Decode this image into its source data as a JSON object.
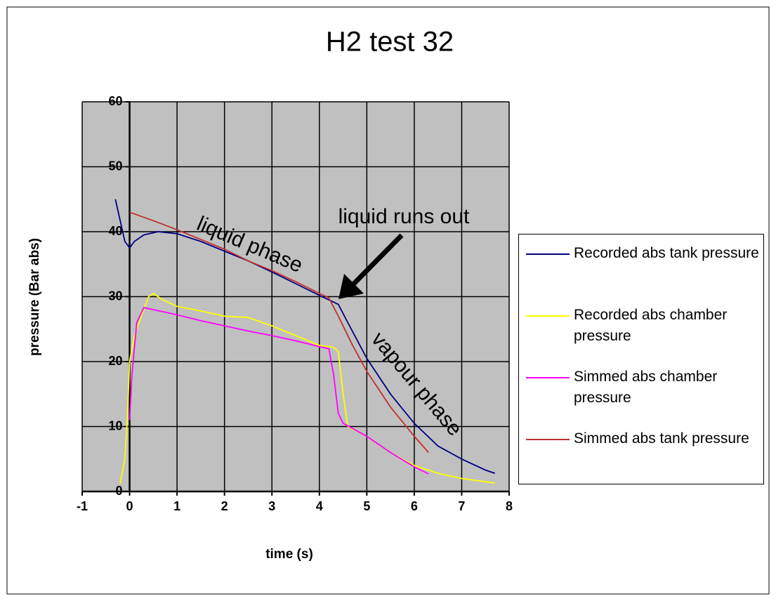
{
  "chart_data": {
    "type": "line",
    "title": "H2 test 32",
    "xlabel": "time (s)",
    "ylabel": "pressure (Bar abs)",
    "xlim": [
      -1,
      8
    ],
    "ylim": [
      0,
      60
    ],
    "xticks": [
      -1,
      0,
      1,
      2,
      3,
      4,
      5,
      6,
      7,
      8
    ],
    "yticks": [
      0,
      10,
      20,
      30,
      40,
      50,
      60
    ],
    "grid": true,
    "plot_background": "#c0c0c0",
    "annotations": [
      "liquid runs out",
      "liquid phase",
      "vapour phase"
    ],
    "series": [
      {
        "name": "Recorded abs tank pressure",
        "color": "#000080",
        "x": [
          -0.3,
          -0.1,
          0,
          0.1,
          0.3,
          0.6,
          1,
          1.5,
          2,
          2.5,
          3,
          3.5,
          4,
          4.2,
          4.4,
          4.6,
          5,
          5.5,
          6,
          6.5,
          7,
          7.5,
          7.7
        ],
        "values": [
          45,
          38.5,
          37.5,
          38.5,
          39.5,
          40,
          39.7,
          38.5,
          37,
          35.5,
          33.8,
          32,
          30.2,
          29.5,
          28.8,
          26,
          20.5,
          15,
          10.5,
          7,
          5,
          3.3,
          2.8
        ]
      },
      {
        "name": "Recorded abs chamber pressure",
        "color": "#ffff00",
        "x": [
          -0.2,
          -0.1,
          -0.05,
          0,
          0.1,
          0.2,
          0.3,
          0.4,
          0.5,
          0.7,
          1,
          1.5,
          2,
          2.5,
          3,
          3.5,
          4,
          4.3,
          4.4,
          4.5,
          4.6,
          5,
          5.5,
          6,
          6.5,
          7,
          7.5,
          7.7
        ],
        "values": [
          1.2,
          5,
          11,
          20,
          24,
          26,
          28,
          30,
          30.5,
          29.5,
          28.5,
          27.8,
          27,
          26.8,
          25.5,
          24,
          22.5,
          22.2,
          21.5,
          15,
          10,
          8.5,
          6,
          4,
          2.8,
          2,
          1.5,
          1.3
        ]
      },
      {
        "name": "Simmed abs chamber pressure",
        "color": "#ff00ff",
        "x": [
          0,
          0.05,
          0.15,
          0.3,
          0.5,
          1,
          1.5,
          2,
          2.5,
          3,
          3.5,
          4,
          4.2,
          4.3,
          4.4,
          4.5,
          5,
          5.5,
          6,
          6.3
        ],
        "values": [
          11,
          18,
          26,
          28.3,
          28,
          27.2,
          26.3,
          25.5,
          24.7,
          24,
          23.2,
          22.3,
          22,
          18,
          12,
          10.5,
          8.5,
          6,
          3.8,
          2.7
        ]
      },
      {
        "name": "Simmed abs tank pressure",
        "color": "#c03030",
        "x": [
          0,
          0.5,
          1,
          1.5,
          2,
          2.5,
          3,
          3.5,
          4,
          4.2,
          4.4,
          4.7,
          5,
          5.5,
          6,
          6.3
        ],
        "values": [
          43,
          41.7,
          40.3,
          38.8,
          37.3,
          35.5,
          34,
          32.3,
          30.5,
          29.8,
          27,
          22.5,
          18.5,
          13,
          8.5,
          6
        ]
      }
    ]
  }
}
